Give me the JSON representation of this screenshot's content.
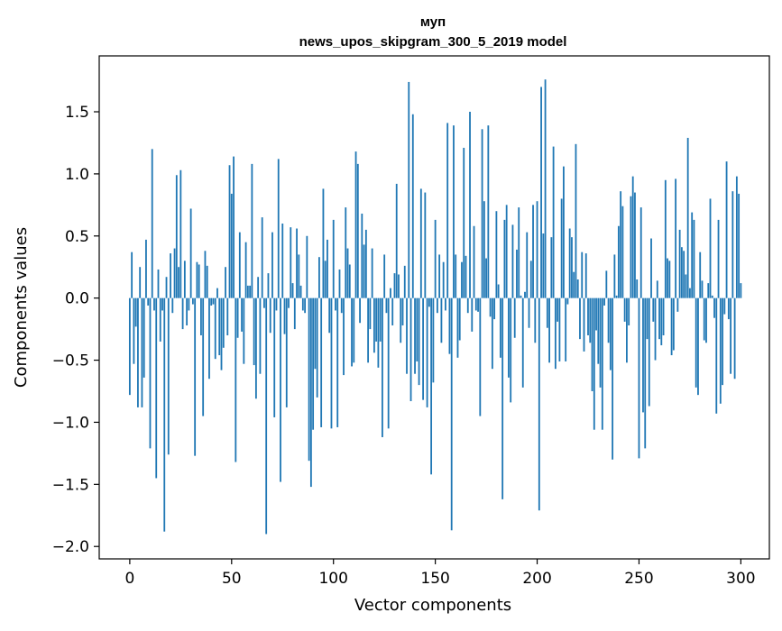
{
  "chart_data": {
    "type": "bar",
    "title_lines": [
      "муп",
      "news_upos_skipgram_300_5_2019 model"
    ],
    "xlabel": "Vector components",
    "ylabel": "Components values",
    "xlim": [
      -15,
      314
    ],
    "ylim": [
      -2.1,
      1.95
    ],
    "xticks": [
      0,
      50,
      100,
      150,
      200,
      250,
      300
    ],
    "yticks": [
      -2.0,
      -1.5,
      -1.0,
      -0.5,
      0.0,
      0.5,
      1.0,
      1.5
    ],
    "ytick_labels": [
      "−2.0",
      "−1.5",
      "−1.0",
      "−0.5",
      "0.0",
      "0.5",
      "1.0",
      "1.5"
    ],
    "bar_color": "#1f77b4",
    "values": [
      -0.78,
      0.37,
      -0.53,
      -0.23,
      -0.88,
      0.25,
      -0.88,
      -0.64,
      0.47,
      -0.06,
      -1.21,
      1.2,
      -0.1,
      -1.45,
      0.23,
      -0.35,
      -0.1,
      -1.88,
      0.17,
      -1.26,
      0.36,
      -0.12,
      0.4,
      0.99,
      0.25,
      1.03,
      -0.25,
      0.3,
      -0.22,
      -0.1,
      0.72,
      -0.05,
      -1.27,
      0.29,
      0.27,
      -0.3,
      -0.95,
      0.38,
      0.26,
      -0.65,
      -0.06,
      -0.05,
      -0.49,
      0.08,
      -0.46,
      -0.58,
      -0.4,
      0.25,
      -0.3,
      1.07,
      0.84,
      1.14,
      -1.32,
      -0.32,
      0.53,
      -0.27,
      -0.53,
      0.45,
      0.1,
      0.1,
      1.08,
      -0.54,
      -0.81,
      0.17,
      -0.61,
      0.65,
      -0.08,
      -1.9,
      0.2,
      -0.28,
      0.53,
      -0.96,
      -0.1,
      1.12,
      -1.48,
      0.6,
      -0.29,
      -0.88,
      -0.08,
      0.57,
      0.12,
      -0.25,
      0.56,
      0.35,
      0.1,
      -0.1,
      -0.12,
      0.5,
      -1.31,
      -1.52,
      -1.06,
      -0.57,
      -0.8,
      0.33,
      -1.04,
      0.88,
      0.3,
      0.47,
      -0.28,
      -1.05,
      0.63,
      -0.1,
      -1.04,
      0.23,
      -0.12,
      -0.62,
      0.73,
      0.4,
      0.27,
      -0.55,
      -0.52,
      1.18,
      1.08,
      -0.2,
      0.68,
      0.43,
      0.55,
      -0.52,
      -0.25,
      0.4,
      -0.44,
      -0.35,
      -0.56,
      -0.35,
      -1.12,
      0.35,
      -0.12,
      -1.05,
      0.08,
      -0.22,
      0.2,
      0.92,
      0.19,
      -0.36,
      -0.22,
      0.26,
      -0.61,
      1.74,
      -0.83,
      1.48,
      -0.61,
      -0.51,
      -0.7,
      0.88,
      -0.82,
      0.85,
      -0.88,
      -0.07,
      -1.42,
      -0.68,
      0.63,
      -0.12,
      0.35,
      -0.36,
      0.29,
      -0.1,
      1.41,
      -0.45,
      -1.87,
      1.39,
      0.35,
      -0.48,
      -0.34,
      0.29,
      1.21,
      0.34,
      -0.12,
      1.5,
      -0.27,
      0.58,
      -0.1,
      -0.11,
      -0.95,
      1.36,
      0.78,
      0.32,
      1.39,
      -0.15,
      -0.57,
      -0.17,
      0.7,
      0.11,
      -0.48,
      -1.62,
      0.63,
      0.75,
      -0.64,
      -0.84,
      0.59,
      -0.32,
      0.39,
      0.73,
      0.02,
      -0.72,
      0.05,
      0.53,
      -0.24,
      0.3,
      0.75,
      -0.36,
      0.78,
      -1.71,
      1.7,
      0.52,
      1.76,
      -0.24,
      -0.52,
      0.49,
      1.22,
      -0.57,
      -0.19,
      -0.51,
      0.8,
      1.06,
      -0.51,
      -0.05,
      0.56,
      0.49,
      0.21,
      1.24,
      0.15,
      -0.33,
      0.37,
      -0.43,
      0.36,
      -0.3,
      -0.36,
      -0.75,
      -1.06,
      -0.26,
      -0.53,
      -0.72,
      -1.06,
      -0.06,
      0.22,
      -0.36,
      -0.58,
      -1.3,
      0.35,
      0.02,
      0.58,
      0.86,
      0.74,
      -0.19,
      -0.52,
      -0.22,
      0.82,
      0.98,
      0.85,
      0.15,
      -1.29,
      0.73,
      -0.92,
      -1.21,
      -0.33,
      -0.87,
      0.48,
      -0.19,
      -0.5,
      0.14,
      -0.33,
      -0.38,
      -0.3,
      0.95,
      0.32,
      0.3,
      -0.46,
      -0.42,
      0.96,
      -0.11,
      0.55,
      0.41,
      0.38,
      0.19,
      1.29,
      0.08,
      0.69,
      0.63,
      -0.72,
      -0.78,
      0.37,
      0.14,
      -0.34,
      -0.36,
      0.12,
      0.8,
      0.02,
      -0.16,
      -0.93,
      0.63,
      -0.85,
      -0.7,
      -0.13,
      1.1,
      -0.17,
      -0.61,
      0.86,
      -0.65,
      0.98,
      0.84,
      0.12
    ]
  }
}
